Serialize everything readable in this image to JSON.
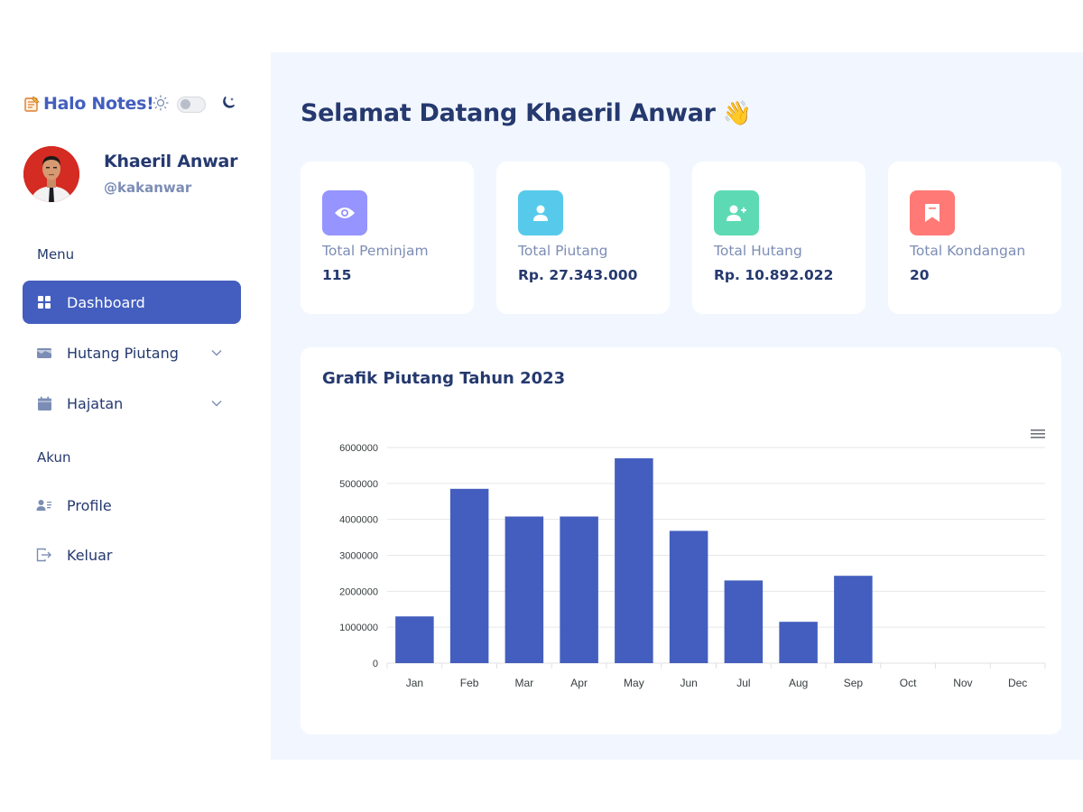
{
  "brand": {
    "name": "Halo Notes!",
    "logo_icon": "notepad-icon"
  },
  "theme": {
    "light_icon": "sun-icon",
    "dark_icon": "moon-icon",
    "mode": "light"
  },
  "user": {
    "name": "Khaeril Anwar",
    "handle": "@kakanwar"
  },
  "sidebar": {
    "menu_title": "Menu",
    "account_title": "Akun",
    "items": [
      {
        "label": "Dashboard",
        "icon": "grid-icon",
        "active": true
      },
      {
        "label": "Hutang Piutang",
        "icon": "wallet-icon",
        "has_submenu": true
      },
      {
        "label": "Hajatan",
        "icon": "calendar-icon",
        "has_submenu": true
      },
      {
        "label": "Profile",
        "icon": "person-lines-icon"
      },
      {
        "label": "Keluar",
        "icon": "logout-icon"
      }
    ]
  },
  "main": {
    "title": "Selamat Datang Khaeril Anwar",
    "title_emoji": "👋",
    "stats": [
      {
        "label": "Total Peminjam",
        "value": "115",
        "icon": "eye-icon",
        "color": "#9694ff"
      },
      {
        "label": "Total Piutang",
        "value": "Rp. 27.343.000",
        "icon": "person-icon",
        "color": "#57caeb"
      },
      {
        "label": "Total Hutang",
        "value": "Rp. 10.892.022",
        "icon": "person-plus-icon",
        "color": "#5ddab4"
      },
      {
        "label": "Total Kondangan",
        "value": "20",
        "icon": "bookmark-icon",
        "color": "#ff7976"
      }
    ]
  },
  "chart_data": {
    "type": "bar",
    "title": "Grafik Piutang Tahun 2023",
    "categories": [
      "Jan",
      "Feb",
      "Mar",
      "Apr",
      "May",
      "Jun",
      "Jul",
      "Aug",
      "Sep",
      "Oct",
      "Nov",
      "Dec"
    ],
    "values": [
      1300000,
      4850000,
      4080000,
      4080000,
      5700000,
      3680000,
      2300000,
      1150000,
      2430000,
      0,
      0,
      0
    ],
    "y_ticks": [
      "0",
      "1000000",
      "2000000",
      "3000000",
      "4000000",
      "5000000",
      "6000000"
    ],
    "ylim": [
      0,
      6000000
    ],
    "xlabel": "",
    "ylabel": "",
    "grid": true,
    "bar_color": "#435ebe"
  }
}
